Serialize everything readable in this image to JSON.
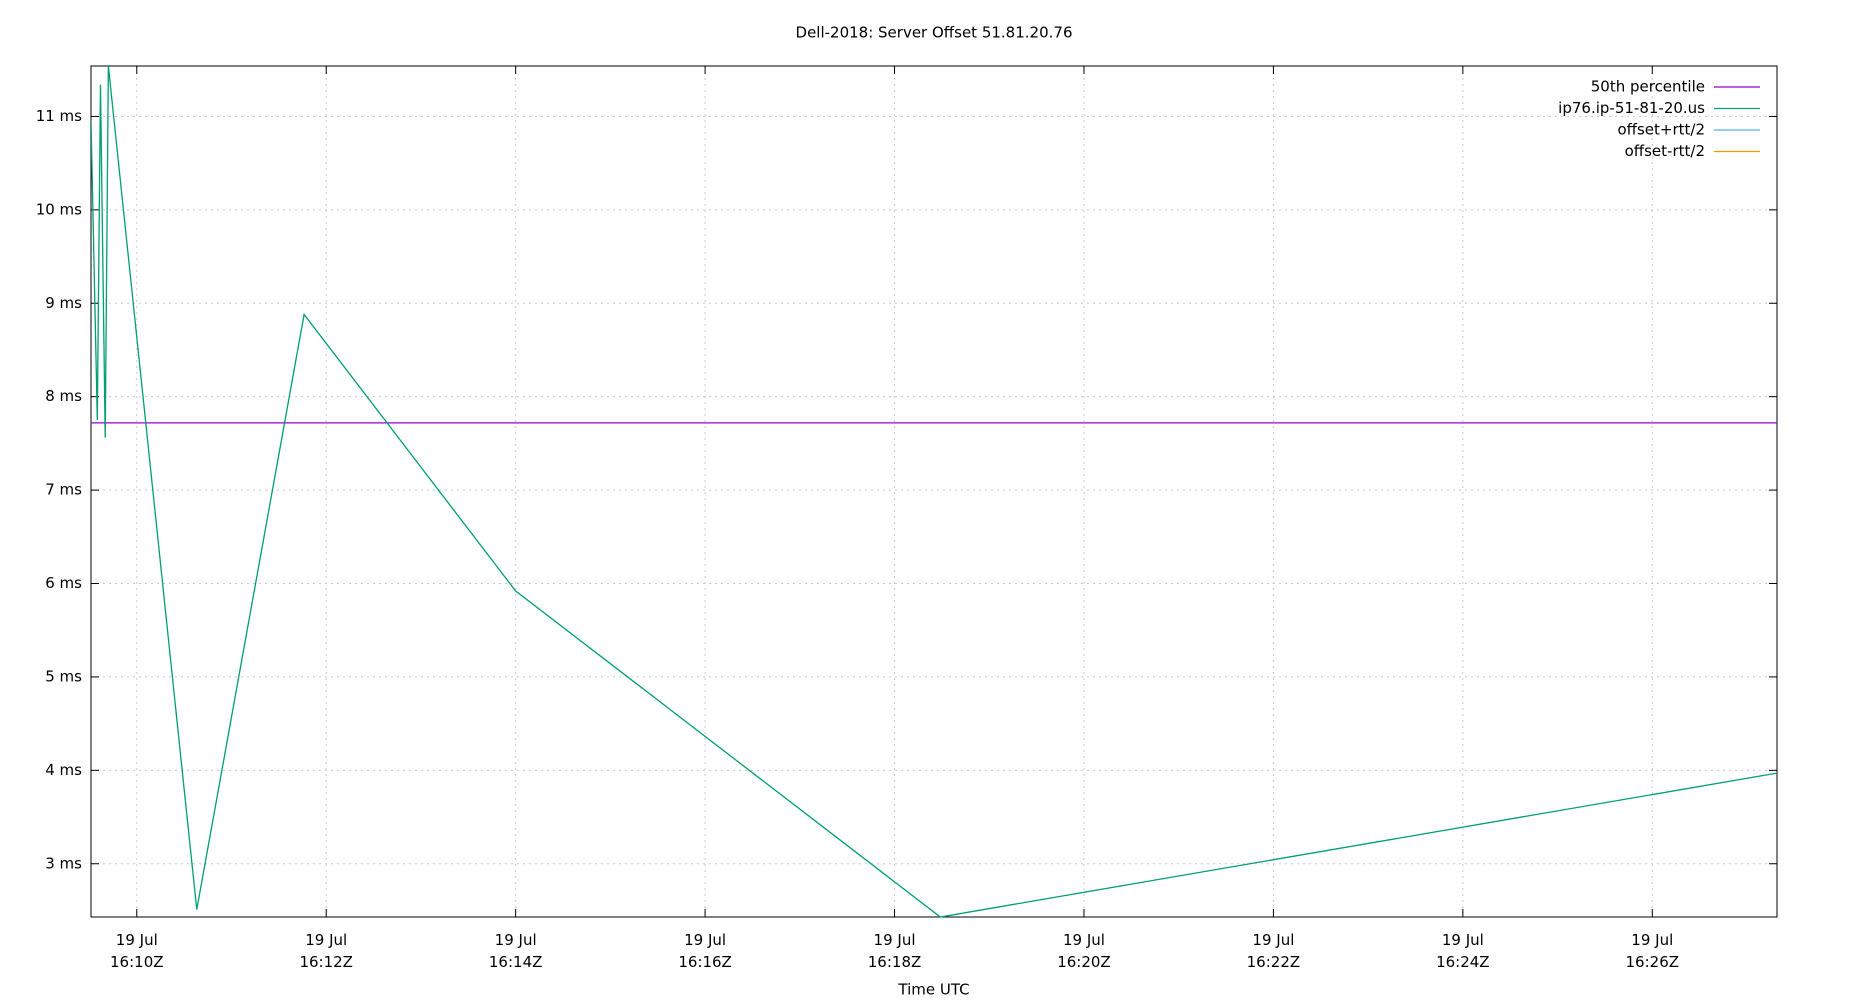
{
  "chart_data": {
    "type": "line",
    "title": "Dell-2018: Server Offset 51.81.20.76",
    "x_label": "Time UTC",
    "x": [
      "16:09:31",
      "16:09:35",
      "16:09:37",
      "16:09:40",
      "16:09:42",
      "16:10:38",
      "16:11:46",
      "16:14:00",
      "16:18:29",
      "16:27:19"
    ],
    "series": [
      {
        "name": "50th percentile",
        "color": "#9400d3",
        "value": 7.72
      },
      {
        "name": "ip76.ip-51-81-20.us",
        "color": "#009e73",
        "values": [
          10.96,
          7.75,
          11.34,
          7.56,
          11.54,
          2.51,
          8.88,
          5.92,
          2.43,
          3.97
        ]
      },
      {
        "name": "offset+rtt/2",
        "color": "#56b4e9"
      },
      {
        "name": "offset-rtt/2",
        "color": "#e69f00"
      }
    ],
    "xlim": [
      "16:09:31",
      "16:27:19"
    ],
    "xticks": [
      {
        "value": "16:10:00",
        "label": "19 Jul\n16:10Z"
      },
      {
        "value": "16:12:00",
        "label": "19 Jul\n16:12Z"
      },
      {
        "value": "16:14:00",
        "label": "19 Jul\n16:14Z"
      },
      {
        "value": "16:16:00",
        "label": "19 Jul\n16:16Z"
      },
      {
        "value": "16:18:00",
        "label": "19 Jul\n16:18Z"
      },
      {
        "value": "16:20:00",
        "label": "19 Jul\n16:20Z"
      },
      {
        "value": "16:22:00",
        "label": "19 Jul\n16:22Z"
      },
      {
        "value": "16:24:00",
        "label": "19 Jul\n16:24Z"
      },
      {
        "value": "16:26:00",
        "label": "19 Jul\n16:26Z"
      }
    ],
    "ylim": [
      2.43,
      11.54
    ],
    "yticks": [
      {
        "value": 3,
        "label": "3 ms"
      },
      {
        "value": 4,
        "label": "4 ms"
      },
      {
        "value": 5,
        "label": "5 ms"
      },
      {
        "value": 6,
        "label": "6 ms"
      },
      {
        "value": 7,
        "label": "7 ms"
      },
      {
        "value": 8,
        "label": "8 ms"
      },
      {
        "value": 9,
        "label": "9 ms"
      },
      {
        "value": 10,
        "label": "10 ms"
      },
      {
        "value": 11,
        "label": "11 ms"
      }
    ],
    "grid": true,
    "legend": "top-right"
  }
}
